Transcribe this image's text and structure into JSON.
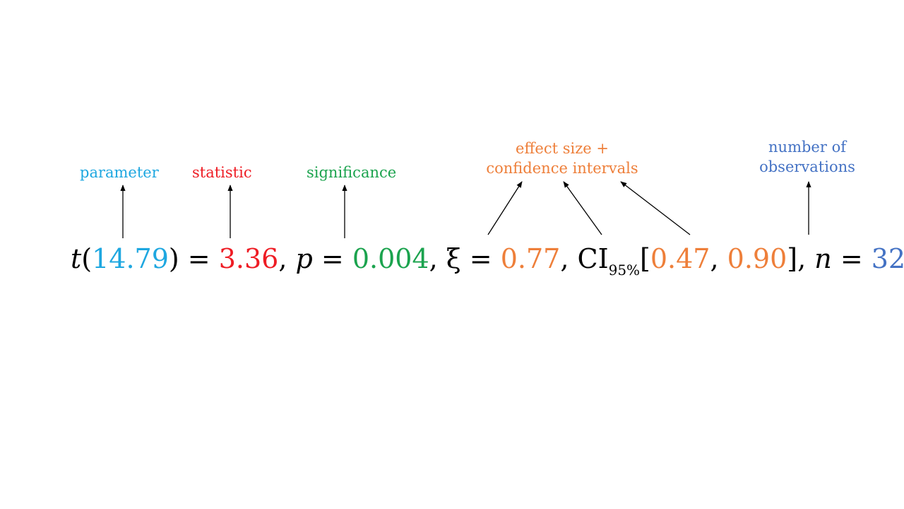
{
  "colors": {
    "parameter": "#1EA7E0",
    "statistic": "#EE1C24",
    "significance": "#1BA34E",
    "effect": "#EE7F3A",
    "observations": "#4472C4",
    "text": "#000000"
  },
  "labels": {
    "parameter": "parameter",
    "statistic": "statistic",
    "significance": "significance",
    "effect_line1": "effect size +",
    "effect_line2": "confidence intervals",
    "observations_line1": "number of",
    "observations_line2": "observations"
  },
  "formula": {
    "t_symbol": "t",
    "open_paren": "(",
    "df": "14.79",
    "close_eq": ") = ",
    "statistic": "3.36",
    "comma1": ", ",
    "p_symbol": "p",
    "eq2": " = ",
    "p_value": "0.004",
    "xi_part": ", ξ = ",
    "xi_value": "0.77",
    "ci_prefix": ", CI",
    "ci_sub": "95%",
    "ci_open": "[",
    "ci_low": "0.47",
    "ci_sep": ", ",
    "ci_high": "0.90",
    "ci_close": "], ",
    "n_symbol": "n",
    "eq3": " = ",
    "n_value": "32"
  }
}
